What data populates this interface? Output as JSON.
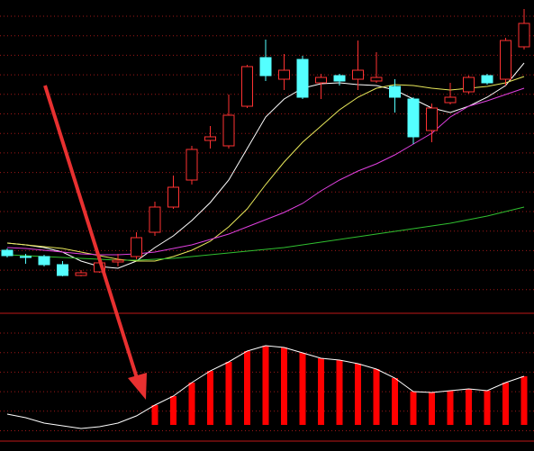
{
  "chart_data": [
    {
      "type": "candlestick",
      "up_color": "#ff3232",
      "down_color": "#54ffff",
      "grid": true,
      "ylim": [
        -6,
        340
      ],
      "open": [
        62,
        55,
        55,
        46,
        34,
        38,
        49,
        55,
        82,
        110,
        140,
        184,
        178,
        222,
        276,
        252,
        274,
        248,
        256,
        252,
        250,
        244,
        230,
        195,
        226,
        238,
        256,
        252,
        288
      ],
      "close": [
        56,
        54,
        46,
        34,
        37,
        48,
        51,
        76,
        110,
        132,
        174,
        188,
        212,
        266,
        256,
        262,
        232,
        254,
        250,
        262,
        254,
        232,
        188,
        220,
        232,
        254,
        248,
        295,
        314
      ],
      "high": [
        64,
        58,
        57,
        50,
        40,
        52,
        58,
        82,
        116,
        145,
        178,
        200,
        235,
        268,
        296,
        280,
        278,
        258,
        258,
        295,
        282,
        252,
        232,
        225,
        248,
        256,
        258,
        298,
        330
      ],
      "low": [
        54,
        47,
        44,
        33,
        33,
        37,
        44,
        52,
        78,
        108,
        135,
        175,
        175,
        220,
        250,
        240,
        230,
        230,
        245,
        240,
        248,
        215,
        180,
        182,
        224,
        236,
        246,
        245,
        285
      ],
      "series": [
        {
          "color": "#ffffff",
          "values": [
            70,
            68,
            65,
            60,
            50,
            44,
            42,
            50,
            65,
            78,
            95,
            115,
            140,
            175,
            210,
            230,
            242,
            247,
            248,
            246,
            245,
            240,
            230,
            220,
            215,
            222,
            232,
            245,
            270
          ]
        },
        {
          "color": "#e8e85a",
          "values": [
            70,
            68,
            66,
            64,
            60,
            56,
            52,
            50,
            50,
            55,
            62,
            72,
            88,
            108,
            135,
            160,
            182,
            200,
            218,
            232,
            242,
            246,
            245,
            242,
            240,
            242,
            244,
            248,
            255
          ]
        },
        {
          "color": "#e040e0",
          "values": [
            65,
            64,
            62,
            60,
            58,
            57,
            57,
            58,
            60,
            64,
            68,
            74,
            80,
            88,
            96,
            104,
            114,
            128,
            140,
            150,
            158,
            168,
            180,
            192,
            210,
            222,
            228,
            235,
            242
          ]
        },
        {
          "color": "#30c030",
          "values": [
            57,
            56,
            55,
            54,
            53,
            52,
            51,
            51,
            52,
            53,
            55,
            57,
            59,
            61,
            63,
            65,
            68,
            71,
            74,
            77,
            80,
            83,
            86,
            89,
            92,
            96,
            100,
            105,
            110
          ]
        }
      ]
    },
    {
      "type": "bar",
      "color": "#ff0000",
      "grid": true,
      "ylim": [
        -23,
        120
      ],
      "values": [
        null,
        null,
        null,
        null,
        null,
        null,
        null,
        null,
        22,
        32,
        47,
        60,
        70,
        82,
        88,
        86,
        80,
        74,
        72,
        68,
        62,
        52,
        37,
        36,
        38,
        40,
        38,
        47,
        54
      ],
      "series": [
        {
          "color": "#ffffff",
          "values": [
            12,
            8,
            2,
            -1,
            -4,
            -2,
            2,
            10,
            22,
            32,
            47,
            60,
            70,
            82,
            88,
            86,
            80,
            74,
            72,
            68,
            62,
            52,
            37,
            36,
            38,
            40,
            38,
            47,
            54
          ]
        }
      ]
    }
  ]
}
